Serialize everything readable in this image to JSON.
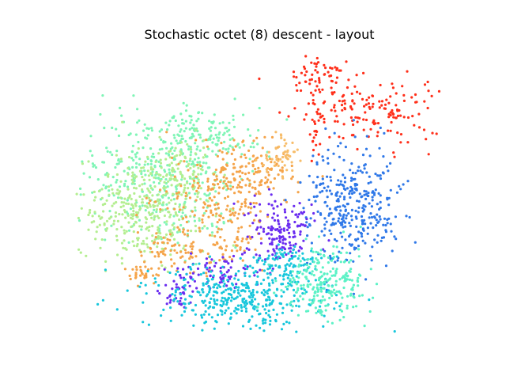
{
  "chart_data": {
    "type": "scatter",
    "title": "Stochastic octet (8) descent - layout",
    "xlabel": "",
    "ylabel": "",
    "axes_visible": false,
    "grid": false,
    "legend": "none",
    "colormap": "rainbow",
    "series": [
      {
        "color": "#7ff5b6",
        "clusters": [
          {
            "cx": 205,
            "cy": 225,
            "sx": 48,
            "sy": 45,
            "n": 380,
            "clip": [
              100,
              150,
              280,
              340
            ]
          },
          {
            "cx": 265,
            "cy": 168,
            "sx": 35,
            "sy": 15,
            "n": 120
          }
        ]
      },
      {
        "color": "#b4ee90",
        "clusters": [
          {
            "cx": 175,
            "cy": 270,
            "sx": 40,
            "sy": 30,
            "n": 300
          },
          {
            "cx": 222,
            "cy": 222,
            "sx": 28,
            "sy": 22,
            "n": 130
          }
        ]
      },
      {
        "color": "#f5a44a",
        "clusters": [
          {
            "cx": 282,
            "cy": 262,
            "sx": 35,
            "sy": 40,
            "n": 260
          },
          {
            "cx": 328,
            "cy": 215,
            "sx": 25,
            "sy": 18,
            "n": 90
          },
          {
            "cx": 218,
            "cy": 318,
            "sx": 25,
            "sy": 10,
            "n": 60
          },
          {
            "cx": 178,
            "cy": 348,
            "sx": 10,
            "sy": 7,
            "n": 30
          }
        ]
      },
      {
        "color": "#f7bd6a",
        "clusters": [
          {
            "cx": 355,
            "cy": 195,
            "sx": 14,
            "sy": 12,
            "n": 50
          }
        ]
      },
      {
        "color": "#ff2f1a",
        "clusters": [
          {
            "cx": 470,
            "cy": 140,
            "sx": 48,
            "sy": 22,
            "n": 170
          },
          {
            "cx": 405,
            "cy": 95,
            "sx": 18,
            "sy": 14,
            "n": 60
          },
          {
            "cx": 398,
            "cy": 175,
            "sx": 4,
            "sy": 12,
            "n": 15
          }
        ]
      },
      {
        "color": "#2f78e8",
        "clusters": [
          {
            "cx": 445,
            "cy": 262,
            "sx": 28,
            "sy": 38,
            "n": 340
          }
        ]
      },
      {
        "color": "#6a2cf0",
        "clusters": [
          {
            "cx": 355,
            "cy": 292,
            "sx": 22,
            "sy": 20,
            "n": 150
          },
          {
            "cx": 278,
            "cy": 345,
            "sx": 30,
            "sy": 12,
            "n": 80
          },
          {
            "cx": 225,
            "cy": 370,
            "sx": 15,
            "sy": 10,
            "n": 35
          }
        ]
      },
      {
        "color": "#18c7dc",
        "clusters": [
          {
            "cx": 300,
            "cy": 375,
            "sx": 55,
            "sy": 20,
            "n": 380
          },
          {
            "cx": 365,
            "cy": 335,
            "sx": 25,
            "sy": 15,
            "n": 100
          }
        ]
      },
      {
        "color": "#5cf2c6",
        "clusters": [
          {
            "cx": 410,
            "cy": 355,
            "sx": 28,
            "sy": 20,
            "n": 230
          }
        ]
      }
    ]
  }
}
